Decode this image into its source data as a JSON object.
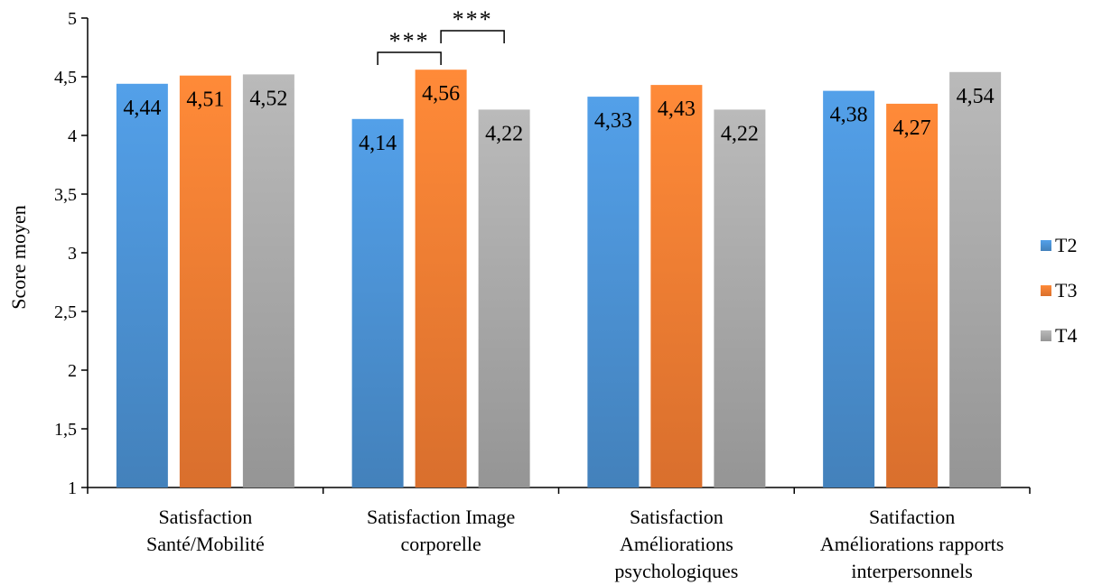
{
  "chart_data": {
    "type": "bar",
    "title": "",
    "ylabel": "Score moyen",
    "xlabel": "",
    "ylim": [
      1,
      5
    ],
    "yticks": [
      "1",
      "1,5",
      "2",
      "2,5",
      "3",
      "3,5",
      "4",
      "4,5",
      "5"
    ],
    "ytick_values": [
      1,
      1.5,
      2,
      2.5,
      3,
      3.5,
      4,
      4.5,
      5
    ],
    "grid": false,
    "legend_position": "right",
    "categories": [
      [
        "Satisfaction",
        "Santé/Mobilité"
      ],
      [
        "Satisfaction Image",
        "corporelle"
      ],
      [
        "Satisfaction",
        "Améliorations",
        "psychologiques"
      ],
      [
        "Satifaction",
        "Améliorations rapports",
        "interpersonnels"
      ]
    ],
    "series": [
      {
        "name": "T2",
        "color": "#4A8FD0",
        "values": [
          4.44,
          4.14,
          4.33,
          4.38
        ],
        "labels": [
          "4,44",
          "4,14",
          "4,33",
          "4,38"
        ]
      },
      {
        "name": "T3",
        "color": "#F17B32",
        "values": [
          4.51,
          4.56,
          4.43,
          4.27
        ],
        "labels": [
          "4,51",
          "4,56",
          "4,43",
          "4,27"
        ]
      },
      {
        "name": "T4",
        "color": "#A6A6A6",
        "values": [
          4.52,
          4.22,
          4.22,
          4.54
        ],
        "labels": [
          "4,52",
          "4,22",
          "4,22",
          "4,54"
        ]
      }
    ],
    "annotations": [
      {
        "category": 1,
        "from_series": 0,
        "to_series": 1,
        "text": "***"
      },
      {
        "category": 1,
        "from_series": 1,
        "to_series": 2,
        "text": "***"
      }
    ]
  }
}
